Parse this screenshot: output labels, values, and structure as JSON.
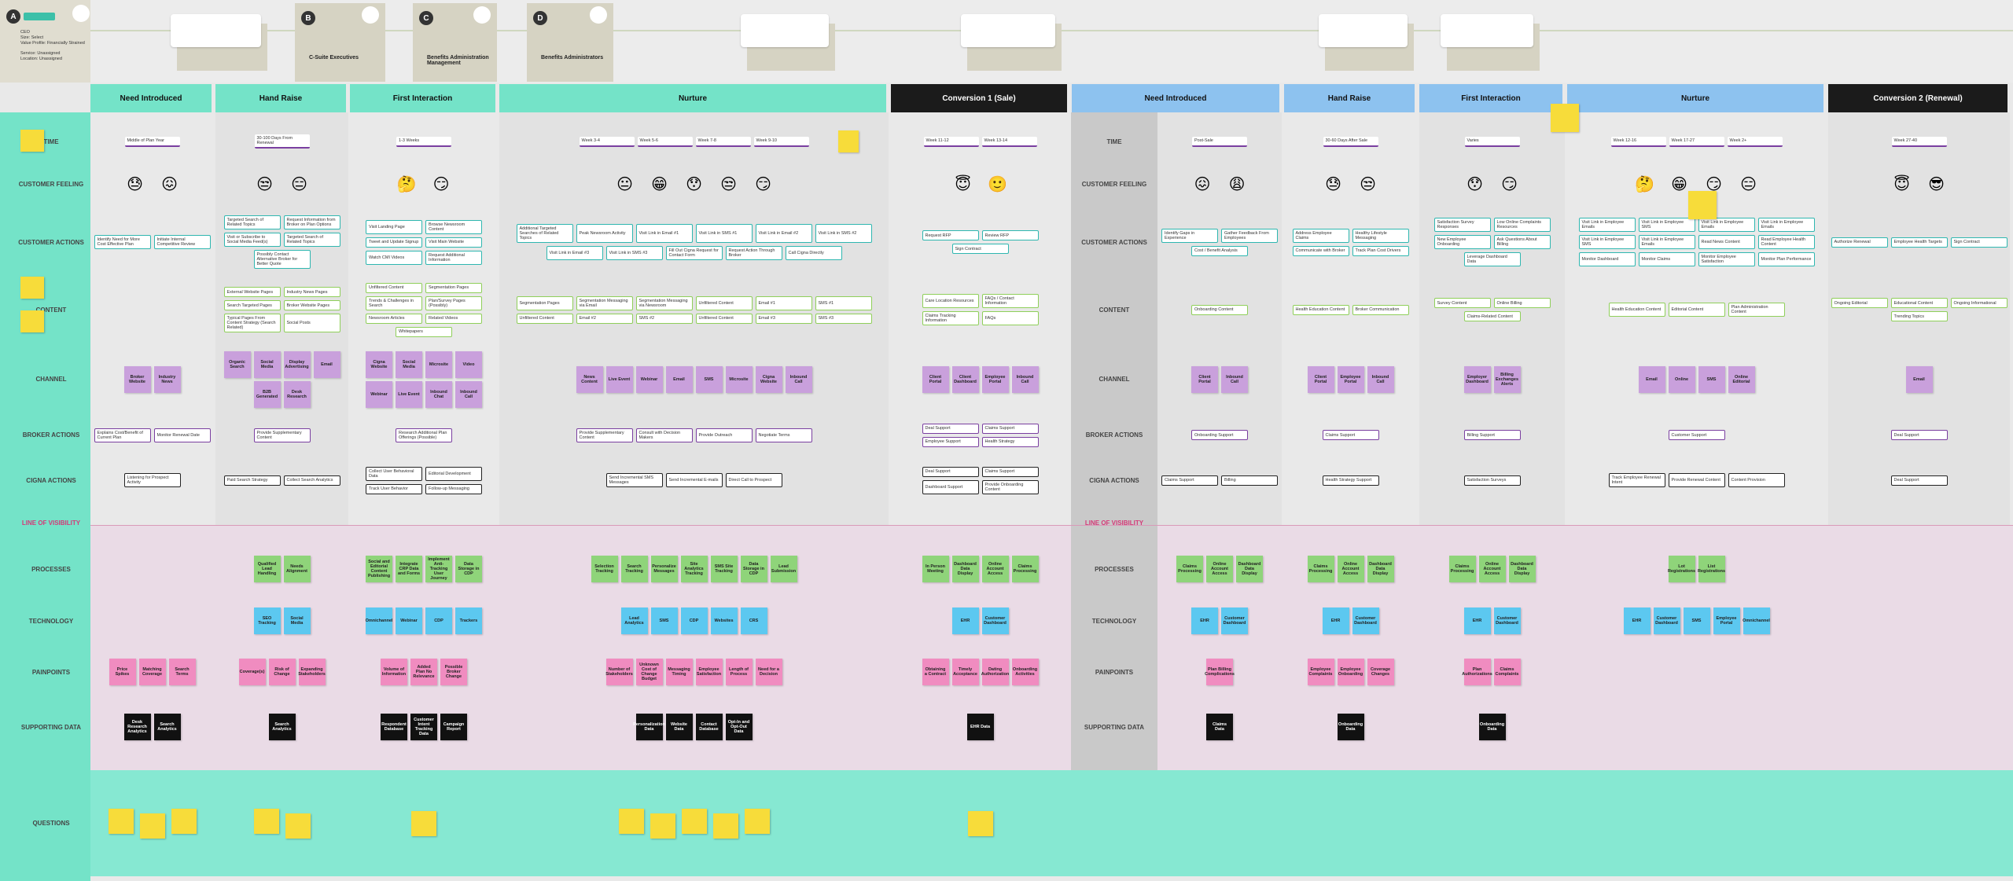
{
  "personas": [
    {
      "letter": "A",
      "details": [
        "CEO",
        "Size: Select",
        "Value Profile: Financially Strained",
        "Service: Unassigned",
        "Location: Unassigned"
      ]
    },
    {
      "letter": "B",
      "name": "C-Suite Executives"
    },
    {
      "letter": "C",
      "name": "Benefits Administration Management"
    },
    {
      "letter": "D",
      "name": "Benefits Administrators"
    }
  ],
  "row_labels": [
    "TIME",
    "CUSTOMER FEELING",
    "CUSTOMER ACTIONS",
    "CONTENT",
    "CHANNEL",
    "BROKER ACTIONS",
    "CIGNA ACTIONS",
    "LINE OF VISIBILITY",
    "PROCESSES",
    "TECHNOLOGY",
    "PAINPOINTS",
    "SUPPORTING DATA",
    "QUESTIONS"
  ],
  "phases": [
    {
      "name": "Need Introduced",
      "time": [
        "Middle of Plan Year"
      ],
      "feeling": [
        "😓",
        "😖"
      ],
      "actions": [
        "Identify Need for More Cost Effective Plan",
        "Initiate Internal Competitive Review"
      ],
      "content": [],
      "channel": [
        "Broker Website",
        "Industry News"
      ],
      "broker": [
        "Explains Cost/Benefit of Current Plan",
        "Monitor Renewal Date"
      ],
      "cigna": [
        "Listening for Prospect Activity"
      ],
      "processes": [],
      "technology": [],
      "painpoints": [
        "Price Spikes",
        "Matching Coverage",
        "Search Terms"
      ],
      "data": [
        "Desk Research Analytics",
        "Search Analytics"
      ]
    },
    {
      "name": "Hand Raise",
      "time": [
        "30-100 Days From Renewal"
      ],
      "feeling": [
        "😒",
        "😑"
      ],
      "actions": [
        "Targeted Search of Related Topics",
        "Request Information from Broker on Plan Options",
        "Visit or Subscribe to Social Media Feed(s)",
        "Targeted Search of Related Topics",
        "Possibly Contact Alternative Broker for Better Quote"
      ],
      "content": [
        "External Website Pages",
        "Industry News Pages",
        "Search Targeted Pages",
        "Broker Website Pages",
        "Typical Pages From Content Strategy (Search Related)",
        "Social Posts"
      ],
      "channel": [
        "Organic Search",
        "Social Media",
        "Display Advertising",
        "Email",
        "B2B Generated",
        "Desk Research"
      ],
      "broker": [
        "Provide Supplementary Content"
      ],
      "cigna": [
        "Paid Search Strategy",
        "Collect Search Analytics"
      ],
      "processes": [
        "Qualified Lead Handling",
        "Needs Alignment"
      ],
      "technology": [
        "SEO Tracking",
        "Social Media"
      ],
      "painpoints": [
        "Coverage(s)",
        "Risk of Change",
        "Expanding Stakeholders"
      ],
      "data": [
        "Search Analytics"
      ]
    },
    {
      "name": "First Interaction",
      "time": [
        "1-3 Weeks"
      ],
      "feeling": [
        "🤔",
        "😏"
      ],
      "actions": [
        "Visit Landing Page",
        "Browse Newsroom Content",
        "Tweet and Update Signup",
        "Visit Main Website",
        "Watch CMI Videos",
        "Request Additional Information"
      ],
      "content": [
        "Unfiltered Content",
        "Segmentation Pages",
        "Trends & Challenges in Search",
        "Plan/Survey Pages (Possibly)",
        "Newsroom Articles",
        "Related Videos",
        "Whitepapers"
      ],
      "channel": [
        "Cigna Website",
        "Social Media",
        "Microsite",
        "Video",
        "Webinar",
        "Live Event",
        "Inbound Chat",
        "Inbound Call"
      ],
      "broker": [
        "Research Additional Plan Offerings (Possible)"
      ],
      "cigna": [
        "Collect User Behavioral Data",
        "Editorial Development",
        "Track User Behavior",
        "Follow-up Messaging"
      ],
      "processes": [
        "Social and Editorial Content Publishing",
        "Integrate CRP Data and Forms",
        "Implement Anti-Tracking User Journey",
        "Data Storage in CDP"
      ],
      "technology": [
        "Omnichannel",
        "Webinar",
        "CDP",
        "Trackers"
      ],
      "painpoints": [
        "Volume of Information",
        "Added Plan No Relevance",
        "Possible Broker Change"
      ],
      "data": [
        "Respondent Database",
        "Customer Intent Tracking Data",
        "Campaign Report"
      ]
    },
    {
      "name": "Nurture",
      "time": [
        "Week 3-4",
        "Week 5-6",
        "Week 7-8",
        "Week 9-10"
      ],
      "feeling": [
        "😐",
        "😁",
        "😯",
        "😒",
        "😏"
      ],
      "actions": [
        "Additional Targeted Searches of Related Topics",
        "Peak Newsroom Activity",
        "Visit Link in Email #1",
        "Visit Link in SMS #1",
        "Visit Link in Email #2",
        "Visit Link in SMS #2",
        "Visit Link in Email #3",
        "Visit Link in SMS #3",
        "Fill Out Cigna Request for Contact Form",
        "Request Action Through Broker",
        "Call Cigna Directly"
      ],
      "content": [
        "Segmentation Pages",
        "Segmentation Messaging via Email",
        "Segmentation Messaging via Newsroom",
        "Unfiltered Content",
        "Email #1",
        "SMS #1",
        "Unfiltered Content",
        "Email #2",
        "SMS #2",
        "Unfiltered Content",
        "Email #3",
        "SMS #3"
      ],
      "channel": [
        "News Content",
        "Live Event",
        "Webinar",
        "Email",
        "SMS",
        "Microsite",
        "Cigna Website",
        "Inbound Call"
      ],
      "broker": [
        "Provide Supplementary Content",
        "Consult with Decision Makers",
        "Provide Outreach",
        "Negotiate Terms"
      ],
      "cigna": [
        "Send Incremental SMS Messages",
        "Send Incremental E-mails",
        "Direct Call to Prospect"
      ],
      "processes": [
        "Selection Tracking",
        "Search Tracking",
        "Personalize Messages",
        "Site Analytics Tracking",
        "SMS Site Tracking",
        "Data Storage in CDP",
        "Lead Submission"
      ],
      "technology": [
        "Lead Analytics",
        "SMS",
        "CDP",
        "Websites",
        "CRS"
      ],
      "painpoints": [
        "Number of Stakeholders",
        "Unknown Cost of Change Budget",
        "Messaging Timing",
        "Employee Satisfaction",
        "Length of Process",
        "Need for a Decision"
      ],
      "data": [
        "Personalization Data",
        "Website Data",
        "Contact Database",
        "Opt-In and Opt-Out Data"
      ]
    },
    {
      "name": "Conversion 1 (Sale)",
      "time": [
        "Week 11-12",
        "Week 13-14"
      ],
      "feeling": [
        "😇",
        "🙂"
      ],
      "actions": [
        "Request RFP",
        "Review RFP",
        "Sign Contract"
      ],
      "content": [
        "Care Location Resources",
        "FAQs / Contact Information",
        "Claims Tracking Information",
        "FAQs"
      ],
      "channel": [
        "Client Portal",
        "Client Dashboard",
        "Employee Portal",
        "Inbound Call"
      ],
      "broker": [
        "Deal Support",
        "Claims Support",
        "Employee Support",
        "Health Strategy"
      ],
      "cigna": [
        "Deal Support",
        "Claims Support",
        "Dashboard Support",
        "Provide Onboarding Content"
      ],
      "processes": [
        "In Person Meeting",
        "Dashboard Data Display",
        "Online Account Access",
        "Claims Processing"
      ],
      "technology": [
        "EHR",
        "Customer Dashboard"
      ],
      "painpoints": [
        "Obtaining a Contract",
        "Timely Acceptance",
        "Dating Authorization",
        "Onboarding Activities"
      ],
      "data": [
        "EHR Data"
      ]
    },
    {
      "name": "Need Introduced",
      "time": [
        "Post-Sale"
      ],
      "feeling": [
        "😖",
        "😩"
      ],
      "actions": [
        "Identify Gaps in Experience",
        "Gather Feedback From Employees",
        "Cost / Benefit Analysis"
      ],
      "content": [
        "Onboarding Content"
      ],
      "channel": [
        "Client Portal",
        "Inbound Call"
      ],
      "broker": [
        "Onboarding Support"
      ],
      "cigna": [
        "Claims Support",
        "Billing"
      ],
      "processes": [
        "Claims Processing",
        "Online Account Access",
        "Dashboard Data Display"
      ],
      "technology": [
        "EHR",
        "Customer Dashboard"
      ],
      "painpoints": [
        "Plan Billing Complications"
      ],
      "data": [
        "Claims Data"
      ]
    },
    {
      "name": "Hand Raise",
      "time": [
        "30-60 Days After Sale"
      ],
      "feeling": [
        "😓",
        "😒"
      ],
      "actions": [
        "Address Employee Claims",
        "Healthy Lifestyle Messaging",
        "Communicate with Broker",
        "Track Plan Cost Drivers"
      ],
      "content": [
        "Health Education Content",
        "Broker Communication"
      ],
      "channel": [
        "Client Portal",
        "Employee Portal",
        "Inbound Call"
      ],
      "broker": [
        "Claims Support"
      ],
      "cigna": [
        "Health Strategy Support"
      ],
      "processes": [
        "Claims Processing",
        "Online Account Access",
        "Dashboard Data Display"
      ],
      "technology": [
        "EHR",
        "Customer Dashboard"
      ],
      "painpoints": [
        "Employee Complaints",
        "Employee Onboarding",
        "Coverage Changes"
      ],
      "data": [
        "Onboarding Data"
      ]
    },
    {
      "name": "First Interaction",
      "time": [
        "Varies"
      ],
      "feeling": [
        "😯",
        "😏"
      ],
      "actions": [
        "Satisfaction Survey Responses",
        "Low Online Complaints Resources",
        "New Employee Onboarding",
        "Ask Questions About Billing",
        "Leverage Dashboard Data"
      ],
      "content": [
        "Survey Content",
        "Online Billing",
        "Claims-Related Content"
      ],
      "channel": [
        "Employer Dashboard",
        "Billing Exchanges Alerts"
      ],
      "broker": [
        "Billing Support"
      ],
      "cigna": [
        "Satisfaction Surveys"
      ],
      "processes": [
        "Claims Processing",
        "Online Account Access",
        "Dashboard Data Display"
      ],
      "technology": [
        "EHR",
        "Customer Dashboard"
      ],
      "painpoints": [
        "Plan Authorizations",
        "Claims Complaints"
      ],
      "data": [
        "Onboarding Data"
      ]
    },
    {
      "name": "Nurture",
      "time": [
        "Week 12-16",
        "Week 17-27",
        "Week 2+"
      ],
      "feeling": [
        "🤔",
        "😁",
        "😏",
        "😑"
      ],
      "actions": [
        "Visit Link in Employee Emails",
        "Visit Link in Employee SMS",
        "Visit Link in Employee Emails",
        "Visit Link in Employee Emails",
        "Visit Link in Employee SMS",
        "Visit Link in Employee Emails",
        "Read News Content",
        "Read Employee Health Content",
        "Monitor Dashboard",
        "Monitor Claims",
        "Monitor Employee Satisfaction",
        "Monitor Plan Performance"
      ],
      "content": [
        "Health Education Content",
        "Editorial Content",
        "Plan Administration Content"
      ],
      "channel": [
        "Email",
        "Online",
        "SMS",
        "Online Editorial"
      ],
      "broker": [
        "Customer Support"
      ],
      "cigna": [
        "Track Employee Renewal Intent",
        "Provide Renewal Content",
        "Content Provision"
      ],
      "processes": [
        "Lot Registrations",
        "List Registrations"
      ],
      "technology": [
        "EHR",
        "Customer Dashboard",
        "SMS",
        "Employee Portal",
        "Omnichannel"
      ],
      "painpoints": [],
      "data": []
    },
    {
      "name": "Conversion 2 (Renewal)",
      "time": [
        "Week 27-40"
      ],
      "feeling": [
        "😇",
        "😎"
      ],
      "actions": [
        "Authorize Renewal",
        "Employee Health Targets",
        "Sign Contract"
      ],
      "content": [
        "Ongoing Editorial",
        "Educational Content",
        "Ongoing Informational",
        "Trending Topics"
      ],
      "channel": [
        "Email"
      ],
      "broker": [
        "Deal Support"
      ],
      "cigna": [
        "Deal Support"
      ],
      "processes": [],
      "technology": [],
      "painpoints": [],
      "data": []
    }
  ]
}
